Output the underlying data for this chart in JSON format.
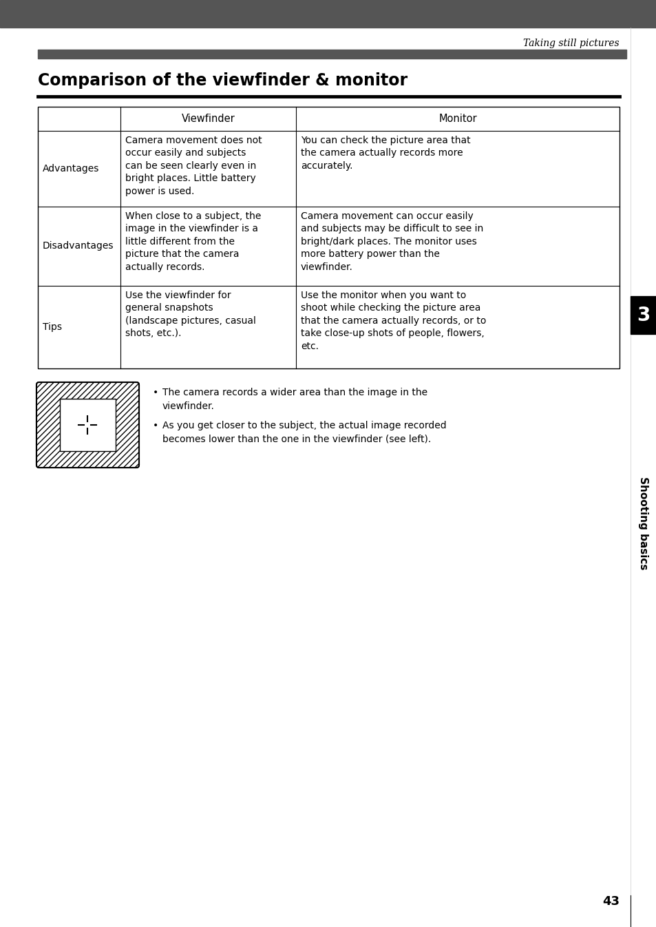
{
  "page_header_bg": "#555555",
  "header_text": "Taking still pictures",
  "section_bar_bg": "#555555",
  "title": "Comparison of the viewfinder & monitor",
  "sidebar_bg": "#000000",
  "sidebar_number": "3",
  "sidebar_text": "Shooting basics",
  "page_number": "43",
  "table": {
    "col_headers": [
      "",
      "Viewfinder",
      "Monitor"
    ],
    "rows": [
      {
        "label": "Advantages",
        "viewfinder": "Camera movement does not\noccur easily and subjects\ncan be seen clearly even in\nbright places. Little battery\npower is used.",
        "monitor": "You can check the picture area that\nthe camera actually records more\naccurately."
      },
      {
        "label": "Disadvantages",
        "viewfinder": "When close to a subject, the\nimage in the viewfinder is a\nlittle different from the\npicture that the camera\nactually records.",
        "monitor": "Camera movement can occur easily\nand subjects may be difficult to see in\nbright/dark places. The monitor uses\nmore battery power than the\nviewfinder."
      },
      {
        "label": "Tips",
        "viewfinder": "Use the viewfinder for\ngeneral snapshots\n(landscape pictures, casual\nshots, etc.).",
        "monitor": "Use the monitor when you want to\nshoot while checking the picture area\nthat the camera actually records, or to\ntake close-up shots of people, flowers,\netc."
      }
    ]
  },
  "bullets": [
    "The camera records a wider area than the image in the\nviewfinder.",
    "As you get closer to the subject, the actual image recorded\nbecomes lower than the one in the viewfinder (see left)."
  ]
}
